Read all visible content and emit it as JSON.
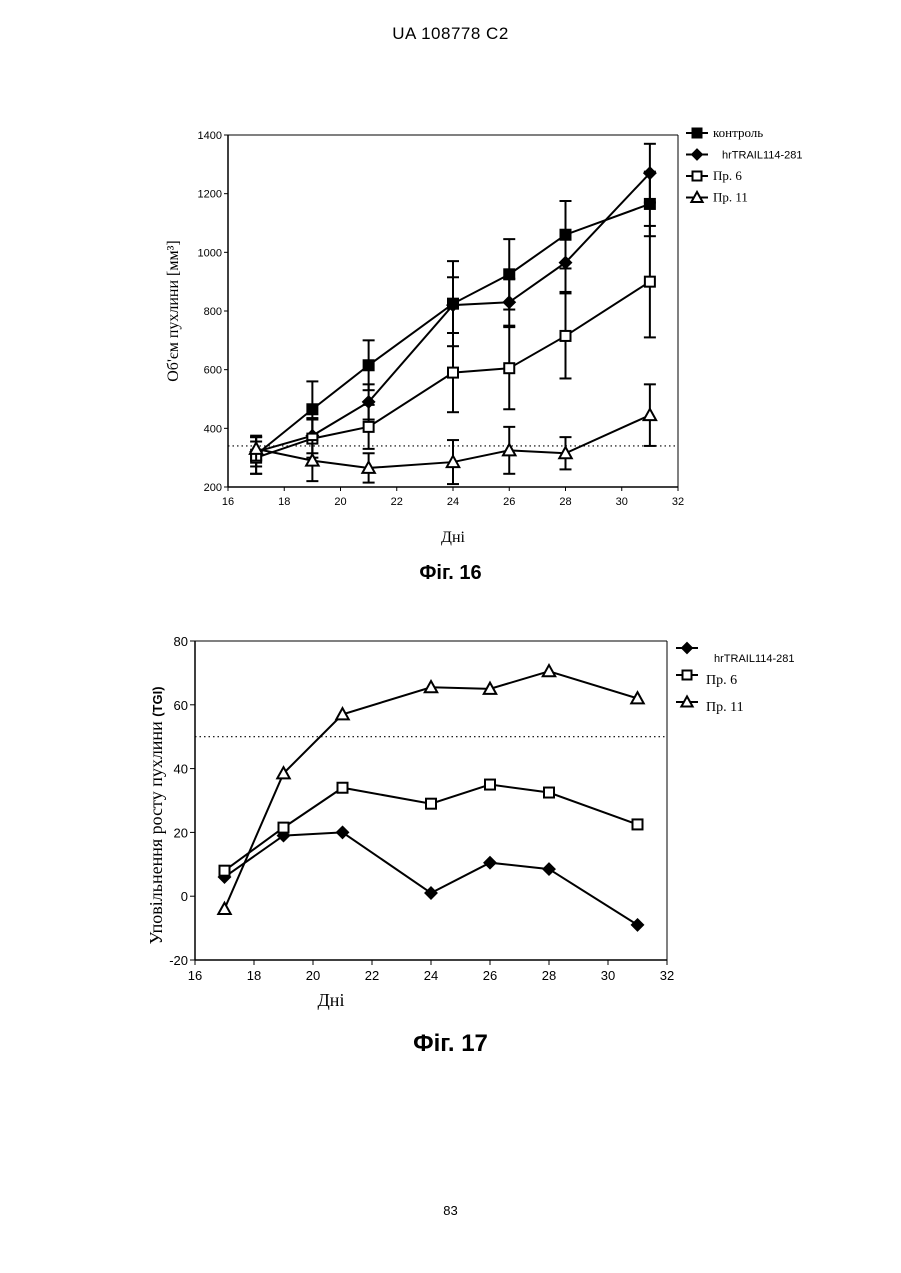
{
  "header": {
    "text": "UA   108778   C2"
  },
  "page_number": "83",
  "figures": [
    {
      "caption": "Фіг. 16"
    },
    {
      "caption": "Фіг. 17"
    }
  ],
  "chart_data": [
    {
      "type": "line",
      "title": "",
      "xlabel": "Дні",
      "ylabel": "Об'єм пухлини [мм³]",
      "xlim": [
        16,
        32
      ],
      "ylim": [
        200,
        1400
      ],
      "x_ticks": [
        16,
        18,
        20,
        22,
        24,
        26,
        28,
        30,
        32
      ],
      "y_ticks": [
        200,
        400,
        600,
        800,
        1000,
        1200,
        1400
      ],
      "reference_line": 340,
      "legend_position": "right",
      "series": [
        {
          "name": "контроль",
          "marker": "filled-square",
          "x": [
            17,
            19,
            21,
            24,
            26,
            28,
            31
          ],
          "y": [
            310,
            465,
            615,
            825,
            925,
            1060,
            1165
          ],
          "err": [
            65,
            95,
            85,
            145,
            120,
            115,
            110
          ]
        },
        {
          "name": "hrTRAIL114-281",
          "marker": "filled-diamond",
          "x": [
            17,
            19,
            21,
            24,
            26,
            28,
            31
          ],
          "y": [
            320,
            375,
            490,
            820,
            830,
            965,
            1270
          ],
          "err": [
            50,
            60,
            60,
            95,
            80,
            100,
            100
          ]
        },
        {
          "name": "Пр. 6",
          "marker": "open-square",
          "x": [
            17,
            19,
            21,
            24,
            26,
            28,
            31
          ],
          "y": [
            300,
            365,
            405,
            590,
            605,
            715,
            900
          ],
          "err": [
            55,
            65,
            75,
            135,
            140,
            145,
            190
          ]
        },
        {
          "name": "Пр. 11",
          "marker": "open-triangle",
          "x": [
            17,
            19,
            21,
            24,
            26,
            28,
            31
          ],
          "y": [
            330,
            290,
            265,
            285,
            325,
            315,
            445
          ],
          "err": [
            40,
            70,
            50,
            75,
            80,
            55,
            105
          ]
        }
      ]
    },
    {
      "type": "line",
      "title": "",
      "xlabel": "Дні",
      "ylabel": "Уповільнення росту пухлини",
      "ylabel_unit": "(TGI)",
      "xlim": [
        16,
        32
      ],
      "ylim": [
        -20,
        80
      ],
      "x_ticks": [
        16,
        18,
        20,
        22,
        24,
        26,
        28,
        30,
        32
      ],
      "y_ticks": [
        -20,
        0,
        20,
        40,
        60,
        80
      ],
      "reference_line": 50,
      "legend_position": "right",
      "series": [
        {
          "name": "hrTRAIL114-281",
          "marker": "filled-diamond",
          "x": [
            17,
            19,
            21,
            24,
            26,
            28,
            31
          ],
          "y": [
            6,
            19,
            20,
            1,
            10.5,
            8.5,
            -9
          ]
        },
        {
          "name": "Пр. 6",
          "marker": "open-square",
          "x": [
            17,
            19,
            21,
            24,
            26,
            28,
            31
          ],
          "y": [
            8,
            21.5,
            34,
            29,
            35,
            32.5,
            22.5
          ]
        },
        {
          "name": "Пр. 11",
          "marker": "open-triangle",
          "x": [
            17,
            19,
            21,
            24,
            26,
            28,
            31
          ],
          "y": [
            -4,
            38.5,
            57,
            65.5,
            65,
            70.5,
            62
          ]
        }
      ]
    }
  ]
}
